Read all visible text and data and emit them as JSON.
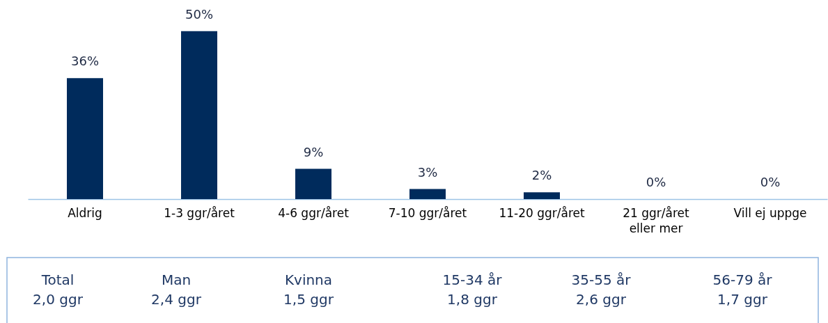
{
  "chart_data": {
    "type": "bar",
    "categories": [
      "Aldrig",
      "1-3 ggr/året",
      "4-6 ggr/året",
      "7-10 ggr/året",
      "11-20 ggr/året",
      "21 ggr/året\neller mer",
      "Vill ej uppge"
    ],
    "values": [
      36,
      50,
      9,
      3,
      2,
      0,
      0
    ],
    "value_labels": [
      "36%",
      "50%",
      "9%",
      "3%",
      "2%",
      "0%",
      "0%"
    ],
    "color": "#002b5c",
    "annotations": [
      "Total\n2,0 ggr",
      "Man\n2,4 ggr",
      "Kvinna\n1,5 ggr",
      "15-34 år\n1,8 ggr",
      "35-55 år\n2,6 ggr",
      "56-79 år\n1,7 ggr"
    ]
  }
}
